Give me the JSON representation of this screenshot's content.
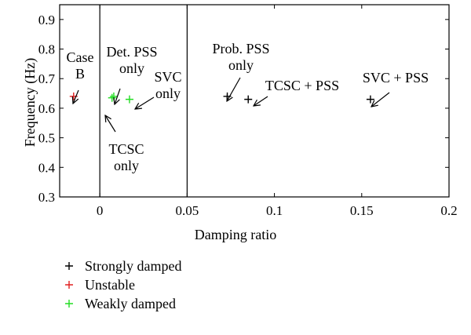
{
  "chart_data": {
    "type": "scatter",
    "xlabel": "Damping ratio",
    "ylabel": "Frequency (Hz)",
    "xlim": [
      -0.023,
      0.2
    ],
    "ylim": [
      0.3,
      0.95
    ],
    "x_ticks": [
      0,
      0.05,
      0.1,
      0.15,
      0.2
    ],
    "x_tick_labels": [
      "0",
      "0.05",
      "0.1",
      "0.15",
      "0.2"
    ],
    "y_ticks": [
      0.3,
      0.4,
      0.5,
      0.6,
      0.7,
      0.8,
      0.9
    ],
    "y_tick_labels": [
      "0.3",
      "0.4",
      "0.5",
      "0.6",
      "0.7",
      "0.8",
      "0.9"
    ],
    "vertical_lines_x": [
      0,
      0.05
    ],
    "grid": false,
    "legend_position": "bottom-left, below the plot",
    "series": [
      {
        "name": "Strongly damped",
        "color": "#000000",
        "marker": "plus",
        "points": [
          {
            "x": 0.073,
            "y": 0.64
          },
          {
            "x": 0.085,
            "y": 0.63
          },
          {
            "x": 0.155,
            "y": 0.63
          }
        ]
      },
      {
        "name": "Unstable",
        "color": "#e02020",
        "marker": "plus",
        "points": [
          {
            "x": -0.015,
            "y": 0.64
          }
        ]
      },
      {
        "name": "Weakly damped",
        "color": "#22dd22",
        "marker": "plus",
        "points": [
          {
            "x": 0.007,
            "y": 0.635
          },
          {
            "x": 0.008,
            "y": 0.64
          },
          {
            "x": 0.017,
            "y": 0.63
          }
        ]
      }
    ],
    "annotations": [
      {
        "lines": [
          "Case",
          "B"
        ]
      },
      {
        "lines": [
          "Det. PSS",
          "only"
        ]
      },
      {
        "lines": [
          "SVC",
          "only"
        ]
      },
      {
        "lines": [
          "TCSC",
          "only"
        ]
      },
      {
        "lines": [
          "Prob. PSS",
          "only"
        ]
      },
      {
        "lines": [
          "TCSC + PSS"
        ]
      },
      {
        "lines": [
          "SVC + PSS"
        ]
      }
    ]
  }
}
